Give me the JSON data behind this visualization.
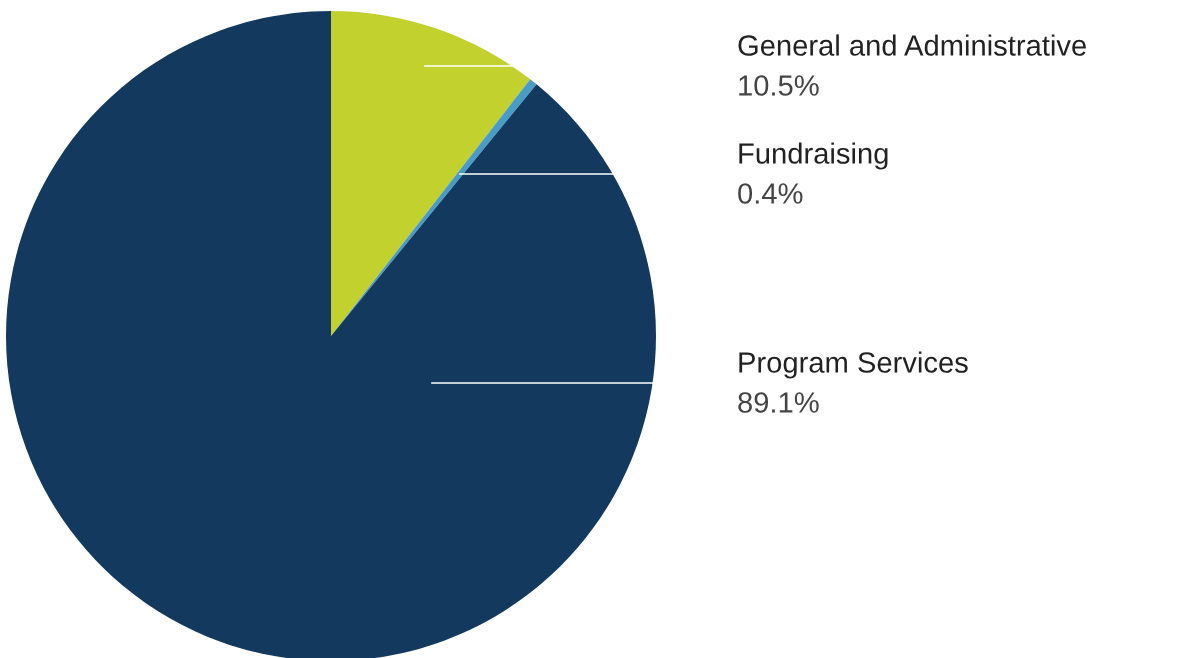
{
  "chart_data": {
    "type": "pie",
    "categories": [
      "General and Administrative",
      "Fundraising",
      "Program Services"
    ],
    "values": [
      10.5,
      0.4,
      89.1
    ],
    "colors": [
      "#c3d12f",
      "#4a9cc8",
      "#133a5e"
    ],
    "value_labels": [
      "10.5%",
      "0.4%",
      "89.1%"
    ]
  }
}
